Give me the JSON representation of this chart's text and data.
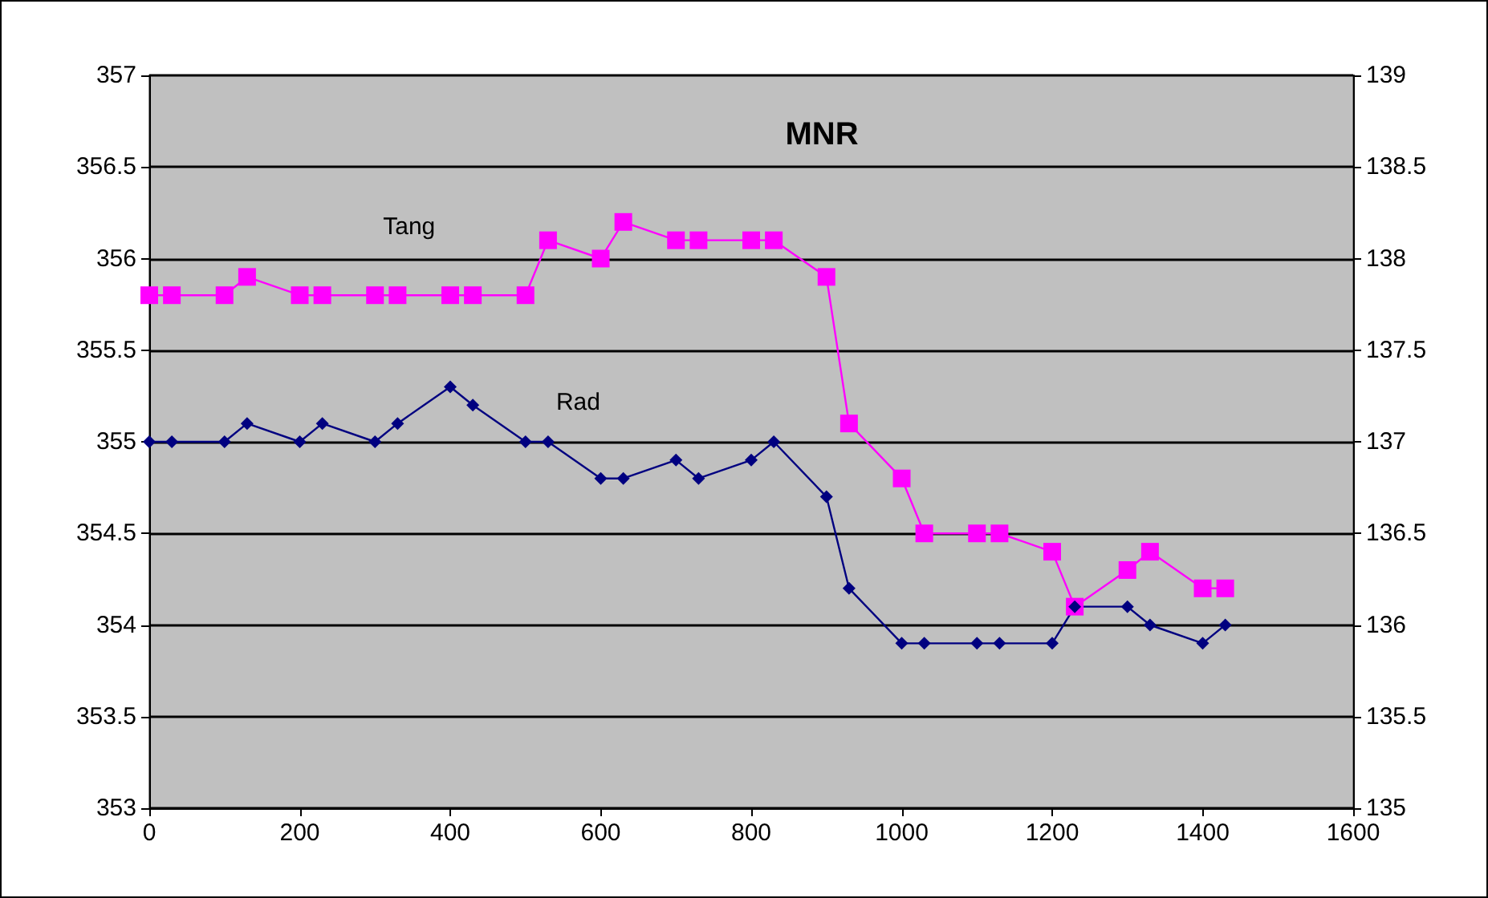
{
  "chart_data": {
    "type": "line",
    "title": "MNR",
    "x": [
      0,
      30,
      100,
      130,
      200,
      230,
      300,
      330,
      400,
      430,
      500,
      530,
      600,
      630,
      700,
      730,
      800,
      830,
      900,
      930,
      1000,
      1030,
      1100,
      1130,
      1200,
      1230,
      1300,
      1330,
      1400,
      1430
    ],
    "series": [
      {
        "name": "Tang",
        "color": "#ff00ff",
        "marker": "square",
        "axis": "y2",
        "values": [
          137.8,
          137.8,
          137.8,
          137.9,
          137.8,
          137.8,
          137.8,
          137.8,
          137.8,
          137.8,
          137.8,
          138.1,
          138,
          138.2,
          138.1,
          138.1,
          138.1,
          138.1,
          137.9,
          137.1,
          136.8,
          136.5,
          136.5,
          136.5,
          136.4,
          136.1,
          136.3,
          136.4,
          136.2,
          136.2
        ]
      },
      {
        "name": "Rad",
        "color": "#000080",
        "marker": "diamond",
        "values": [
          355,
          355,
          355,
          355.1,
          355,
          355.1,
          355,
          355.1,
          355.3,
          355.2,
          355,
          355,
          354.8,
          354.8,
          354.9,
          354.8,
          354.9,
          355,
          354.7,
          354.2,
          353.9,
          353.9,
          353.9,
          353.9,
          353.9,
          354.1,
          354.1,
          354,
          353.9,
          354
        ]
      }
    ],
    "xlim": [
      0,
      1600
    ],
    "xticks": [
      0,
      200,
      400,
      600,
      800,
      1000,
      1200,
      1400,
      1600
    ],
    "ylim": [
      353,
      357
    ],
    "yticks": [
      353,
      353.5,
      354,
      354.5,
      355,
      355.5,
      356,
      356.5,
      357
    ],
    "y2lim": [
      135,
      139
    ],
    "y2ticks": [
      135,
      135.5,
      136,
      136.5,
      137,
      137.5,
      138,
      138.5,
      139
    ],
    "grid": "y",
    "legend": false,
    "line_style": "solid"
  }
}
